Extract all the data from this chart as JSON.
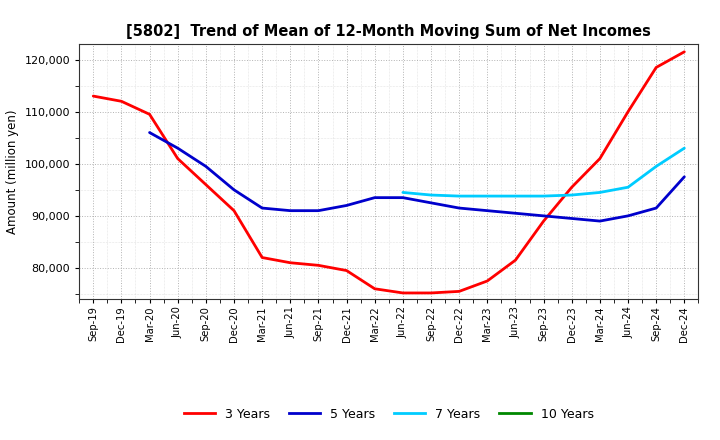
{
  "title": "[5802]  Trend of Mean of 12-Month Moving Sum of Net Incomes",
  "ylabel": "Amount (million yen)",
  "ylim": [
    74000,
    123000
  ],
  "yticks": [
    80000,
    90000,
    100000,
    110000,
    120000
  ],
  "background_color": "#ffffff",
  "grid_color": "#aaaaaa",
  "legend_labels": [
    "3 Years",
    "5 Years",
    "7 Years",
    "10 Years"
  ],
  "legend_colors": [
    "#ff0000",
    "#0000cc",
    "#00ccff",
    "#008800"
  ],
  "x_labels": [
    "Sep-19",
    "Dec-19",
    "Mar-20",
    "Jun-20",
    "Sep-20",
    "Dec-20",
    "Mar-21",
    "Jun-21",
    "Sep-21",
    "Dec-21",
    "Mar-22",
    "Jun-22",
    "Sep-22",
    "Dec-22",
    "Mar-23",
    "Jun-23",
    "Sep-23",
    "Dec-23",
    "Mar-24",
    "Jun-24",
    "Sep-24",
    "Dec-24"
  ],
  "series_3y_x": [
    0,
    1,
    2,
    3,
    4,
    5,
    6,
    7,
    8,
    9,
    10,
    11,
    12,
    13,
    14,
    15,
    16,
    17,
    18,
    19,
    20,
    21
  ],
  "series_3y_v": [
    113000,
    112000,
    109500,
    101000,
    96000,
    91000,
    82000,
    81000,
    80500,
    79500,
    76000,
    75200,
    75200,
    75500,
    77500,
    81500,
    89000,
    95500,
    101000,
    110000,
    118500,
    121500
  ],
  "series_5y_x": [
    2,
    3,
    4,
    5,
    6,
    7,
    8,
    9,
    10,
    11,
    12,
    13,
    14,
    15,
    16,
    17,
    18,
    19,
    20,
    21
  ],
  "series_5y_v": [
    106000,
    103000,
    99500,
    95000,
    91500,
    91000,
    91000,
    92000,
    93500,
    93500,
    92500,
    91500,
    91000,
    90500,
    90000,
    89500,
    89000,
    90000,
    91500,
    97500
  ],
  "series_7y_x": [
    11,
    12,
    13,
    14,
    15,
    16,
    17,
    18,
    19,
    20,
    21
  ],
  "series_7y_v": [
    94500,
    94000,
    93800,
    93800,
    93800,
    93800,
    94000,
    94500,
    95500,
    99500,
    103000
  ],
  "series_10y_x": [],
  "series_10y_v": []
}
